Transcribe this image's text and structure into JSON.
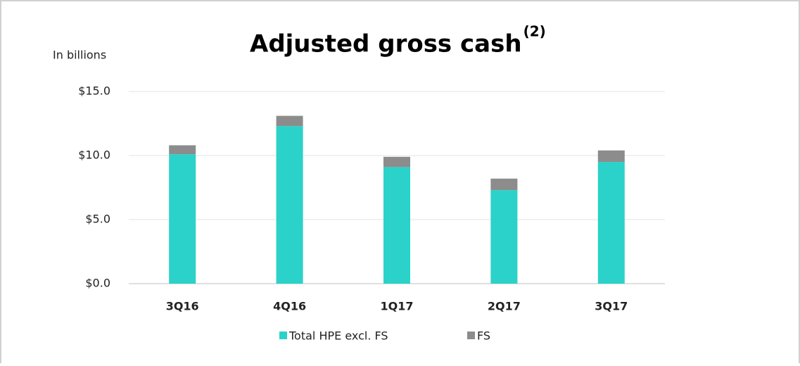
{
  "chart_data": {
    "type": "stacked_bar",
    "title": "Adjusted gross cash",
    "title_superscript": "(2)",
    "y_axis_label": "In billions",
    "categories": [
      "3Q16",
      "4Q16",
      "1Q17",
      "2Q17",
      "3Q17"
    ],
    "series": [
      {
        "name": "Total HPE excl. FS",
        "color": "#2ad2c9",
        "values": [
          10.1,
          12.3,
          9.1,
          7.3,
          9.5
        ]
      },
      {
        "name": "FS",
        "color": "#8c8c8c",
        "values": [
          0.7,
          0.8,
          0.8,
          0.9,
          0.9
        ]
      }
    ],
    "ylim": [
      0,
      15
    ],
    "yticks": [
      {
        "value": 0,
        "label": "$0.0"
      },
      {
        "value": 5,
        "label": "$5.0"
      },
      {
        "value": 10,
        "label": "$10.0"
      },
      {
        "value": 15,
        "label": "$15.0"
      }
    ],
    "grid": true
  }
}
